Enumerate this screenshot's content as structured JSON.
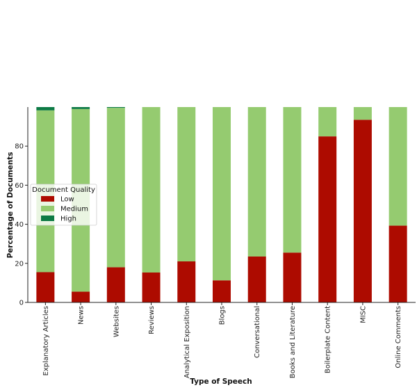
{
  "chart_data": {
    "type": "bar",
    "stacked": true,
    "categories": [
      "Explanatory Articles",
      "News",
      "Websites",
      "Reviews",
      "Analytical Exposition",
      "Blogs",
      "Conversational",
      "Books and Literature",
      "Boilerplate Content",
      "MISC",
      "Online Comments"
    ],
    "series": [
      {
        "name": "Low",
        "color": "#ad0b00",
        "values": [
          15.5,
          5.5,
          18,
          15.3,
          21,
          11.3,
          23.5,
          25.5,
          85,
          93.5,
          39.3
        ]
      },
      {
        "name": "Medium",
        "color": "#95cb70",
        "values": [
          82.8,
          93.5,
          81.6,
          84.7,
          79,
          88.7,
          76.5,
          74.5,
          15,
          6.5,
          60.7
        ]
      },
      {
        "name": "High",
        "color": "#0d7a45",
        "values": [
          1.7,
          1.0,
          0.4,
          0,
          0,
          0,
          0,
          0,
          0,
          0,
          0
        ]
      }
    ],
    "xlabel": "Type of Speech",
    "ylabel": "Percentage of Documents",
    "yticks": [
      0,
      20,
      40,
      60,
      80
    ],
    "ylim": [
      0,
      100
    ],
    "legend": {
      "title": "Document Quality",
      "position": "center-left"
    },
    "grid": false
  }
}
